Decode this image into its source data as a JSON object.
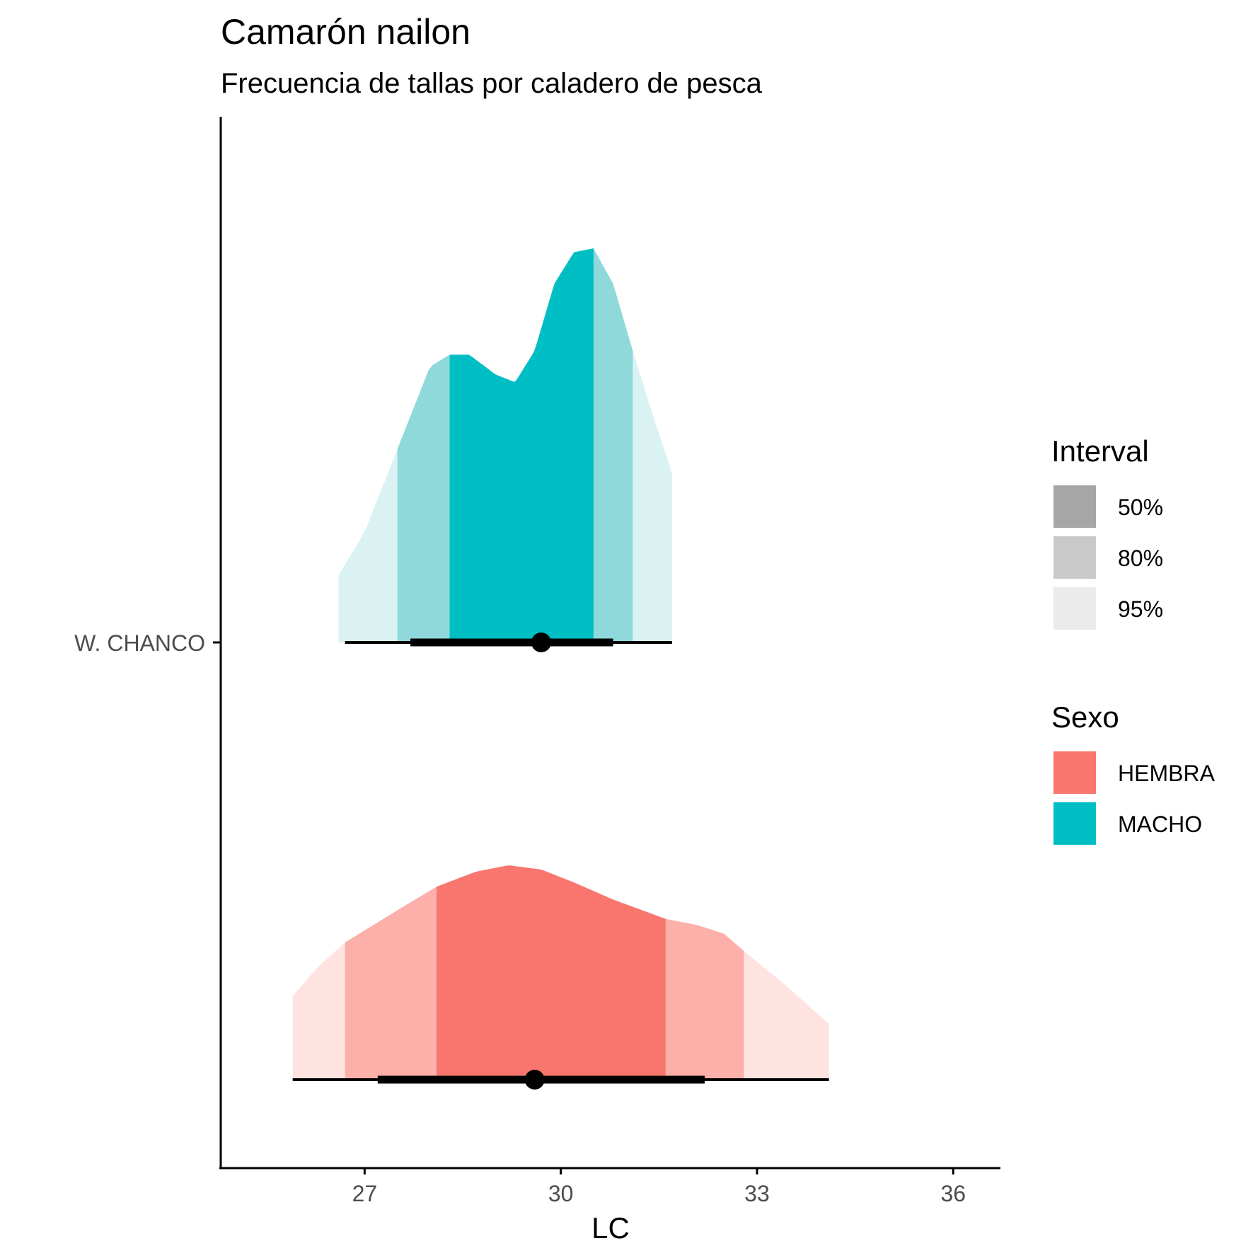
{
  "chart_data": {
    "type": "area",
    "title": "Camarón nailon",
    "subtitle": "Frecuencia de tallas por caladero de pesca",
    "xlabel": "LC",
    "ylabel": "",
    "xlim": [
      24.8,
      36.7
    ],
    "x_ticks": [
      27,
      30,
      33,
      36
    ],
    "x_tick_labels": [
      "27",
      "30",
      "33",
      "36"
    ],
    "y_categories": [
      "W. CHANCO"
    ],
    "grid": false,
    "intervals": {
      "MACHO": {
        "median": 29.7,
        "i50": [
          28.3,
          30.5
        ],
        "i80": [
          27.5,
          31.1
        ],
        "i95": [
          26.6,
          31.7
        ],
        "point_interval": {
          "thick": [
            27.7,
            30.8
          ],
          "thin": [
            26.7,
            31.7
          ]
        }
      },
      "HEMBRA": {
        "median": 29.6,
        "i50": [
          28.1,
          31.6
        ],
        "i80": [
          26.7,
          32.8
        ],
        "i95": [
          25.9,
          34.1
        ],
        "point_interval": {
          "thick": [
            27.2,
            32.2
          ],
          "thin": [
            25.9,
            34.1
          ]
        }
      }
    },
    "series": [
      {
        "name": "MACHO",
        "color": "#00BFC4",
        "density": [
          [
            26.6,
            0.17
          ],
          [
            27.0,
            0.28
          ],
          [
            27.5,
            0.49
          ],
          [
            28.0,
            0.7
          ],
          [
            28.3,
            0.73
          ],
          [
            28.6,
            0.73
          ],
          [
            29.0,
            0.68
          ],
          [
            29.3,
            0.66
          ],
          [
            29.6,
            0.74
          ],
          [
            29.9,
            0.91
          ],
          [
            30.2,
            0.99
          ],
          [
            30.5,
            1.0
          ],
          [
            30.8,
            0.91
          ],
          [
            31.1,
            0.74
          ],
          [
            31.4,
            0.58
          ],
          [
            31.7,
            0.43
          ]
        ]
      },
      {
        "name": "HEMBRA",
        "color": "#F8766D",
        "density": [
          [
            25.9,
            0.39
          ],
          [
            26.3,
            0.53
          ],
          [
            26.7,
            0.64
          ],
          [
            27.5,
            0.79
          ],
          [
            28.1,
            0.9
          ],
          [
            28.7,
            0.97
          ],
          [
            29.2,
            1.0
          ],
          [
            29.7,
            0.98
          ],
          [
            30.2,
            0.92
          ],
          [
            30.8,
            0.84
          ],
          [
            31.6,
            0.75
          ],
          [
            32.1,
            0.72
          ],
          [
            32.5,
            0.68
          ],
          [
            32.8,
            0.6
          ],
          [
            33.4,
            0.45
          ],
          [
            34.1,
            0.26
          ]
        ]
      }
    ],
    "legend": {
      "placement": "right",
      "interval_title": "Interval",
      "interval_items": [
        {
          "label": "50%",
          "color": "#A6A6A6"
        },
        {
          "label": "80%",
          "color": "#C9C9C9"
        },
        {
          "label": "95%",
          "color": "#EBEBEB"
        }
      ],
      "sexo_title": "Sexo",
      "sexo_items": [
        {
          "label": "HEMBRA",
          "color": "#F8766D"
        },
        {
          "label": "MACHO",
          "color": "#00BFC4"
        }
      ]
    }
  }
}
